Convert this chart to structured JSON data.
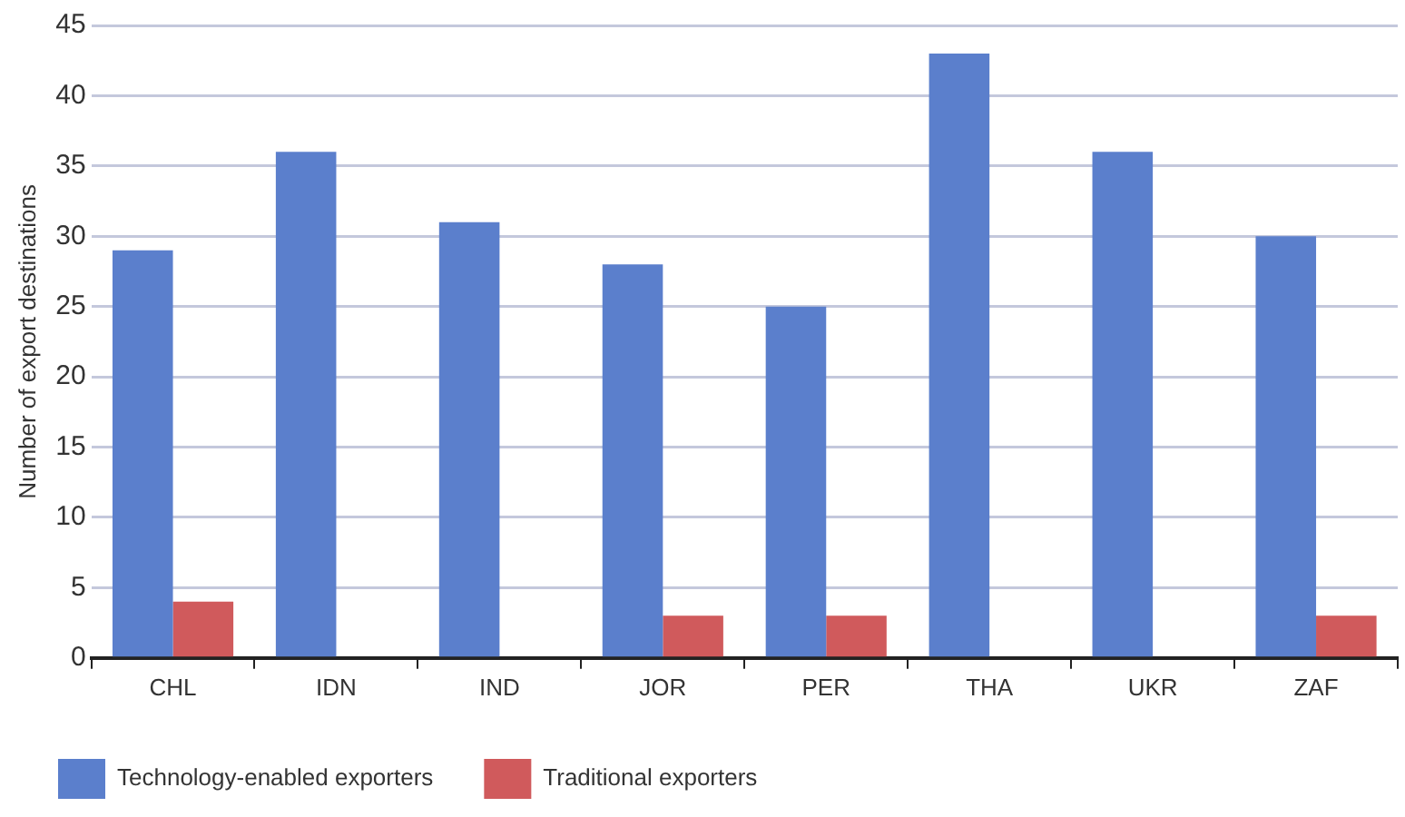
{
  "chart_data": {
    "type": "bar",
    "ylabel": "Number of export destinations",
    "categories": [
      "CHL",
      "IDN",
      "IND",
      "JOR",
      "PER",
      "THA",
      "UKR",
      "ZAF"
    ],
    "series": [
      {
        "name": "Technology-enabled exporters",
        "color": "#5b7fcc",
        "values": [
          29,
          36,
          31,
          28,
          25,
          43,
          36,
          30
        ]
      },
      {
        "name": "Traditional exporters",
        "color": "#d05a5c",
        "values": [
          4,
          0,
          0,
          3,
          3,
          0,
          0,
          3
        ]
      }
    ],
    "ylim": [
      0,
      45
    ],
    "yticks": [
      0,
      5,
      10,
      15,
      20,
      25,
      30,
      35,
      40,
      45
    ],
    "grid": "y",
    "legend": "bottom left"
  }
}
